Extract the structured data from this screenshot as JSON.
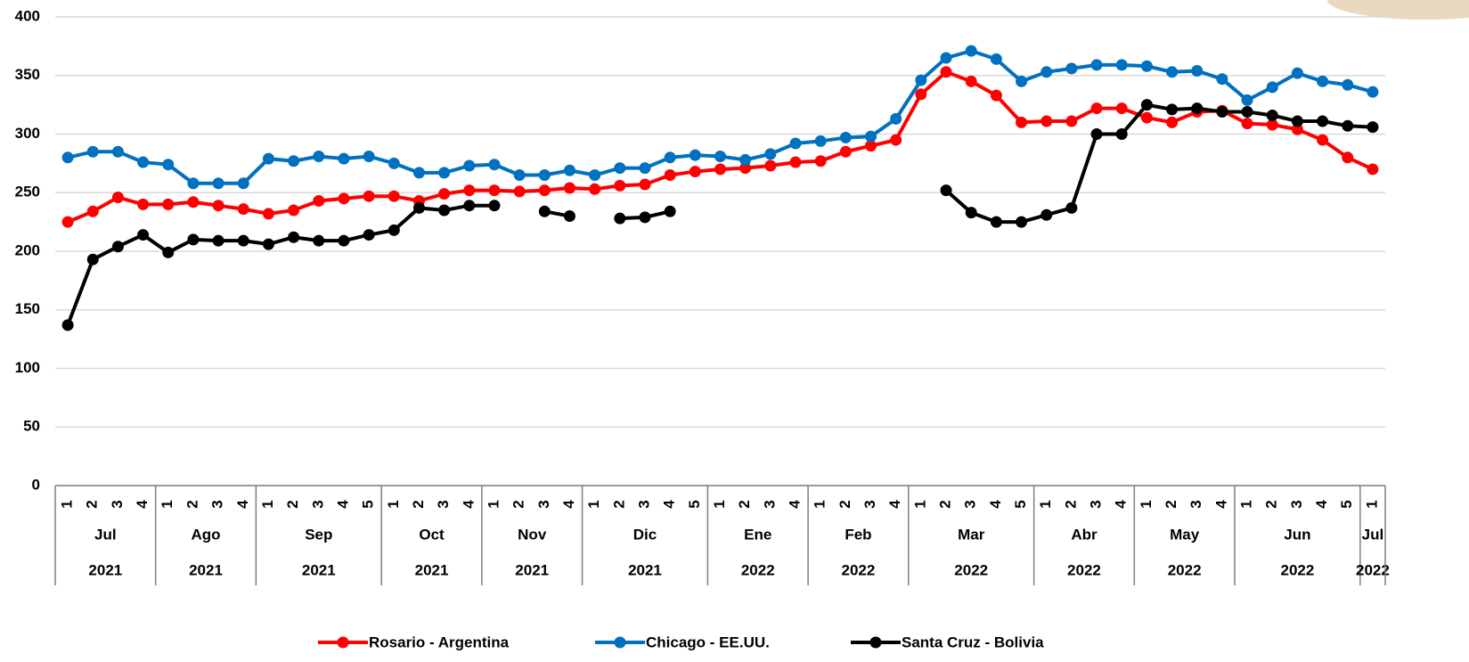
{
  "chart_data": {
    "type": "line",
    "months": [
      {
        "name": "Jul",
        "year": "2021",
        "weeks": [
          "1",
          "2",
          "3",
          "4"
        ]
      },
      {
        "name": "Ago",
        "year": "2021",
        "weeks": [
          "1",
          "2",
          "3",
          "4"
        ]
      },
      {
        "name": "Sep",
        "year": "2021",
        "weeks": [
          "1",
          "2",
          "3",
          "4",
          "5"
        ]
      },
      {
        "name": "Oct",
        "year": "2021",
        "weeks": [
          "1",
          "2",
          "3",
          "4"
        ]
      },
      {
        "name": "Nov",
        "year": "2021",
        "weeks": [
          "1",
          "2",
          "3",
          "4"
        ]
      },
      {
        "name": "Dic",
        "year": "2021",
        "weeks": [
          "1",
          "2",
          "3",
          "4",
          "5"
        ]
      },
      {
        "name": "Ene",
        "year": "2022",
        "weeks": [
          "1",
          "2",
          "3",
          "4"
        ]
      },
      {
        "name": "Feb",
        "year": "2022",
        "weeks": [
          "1",
          "2",
          "3",
          "4"
        ]
      },
      {
        "name": "Mar",
        "year": "2022",
        "weeks": [
          "1",
          "2",
          "3",
          "4",
          "5"
        ]
      },
      {
        "name": "Abr",
        "year": "2022",
        "weeks": [
          "1",
          "2",
          "3",
          "4"
        ]
      },
      {
        "name": "May",
        "year": "2022",
        "weeks": [
          "1",
          "2",
          "3",
          "4"
        ]
      },
      {
        "name": "Jun",
        "year": "2022",
        "weeks": [
          "1",
          "2",
          "3",
          "4",
          "5"
        ]
      },
      {
        "name": "Jul",
        "year": "2022",
        "weeks": [
          "1"
        ]
      }
    ],
    "series": [
      {
        "name": "Rosario - Argentina",
        "color": "#ff0000",
        "values": [
          225,
          234,
          246,
          240,
          240,
          242,
          239,
          236,
          232,
          235,
          243,
          245,
          247,
          247,
          243,
          249,
          252,
          252,
          251,
          252,
          254,
          253,
          256,
          257,
          265,
          268,
          270,
          271,
          273,
          276,
          277,
          285,
          290,
          295,
          334,
          353,
          345,
          333,
          310,
          311,
          311,
          322,
          322,
          314,
          310,
          319,
          320,
          309,
          308,
          304,
          295,
          280,
          270
        ]
      },
      {
        "name": "Chicago - EE.UU.",
        "color": "#0070c0",
        "values": [
          280,
          285,
          285,
          276,
          274,
          258,
          258,
          258,
          279,
          277,
          281,
          279,
          281,
          275,
          267,
          267,
          273,
          274,
          265,
          265,
          269,
          265,
          271,
          271,
          280,
          282,
          281,
          278,
          283,
          292,
          294,
          297,
          298,
          313,
          346,
          365,
          371,
          364,
          345,
          353,
          356,
          359,
          359,
          358,
          353,
          354,
          347,
          329,
          340,
          352,
          345,
          342,
          336
        ]
      },
      {
        "name": "Santa Cruz - Bolivia",
        "color": "#000000",
        "values": [
          137,
          193,
          204,
          214,
          199,
          210,
          209,
          209,
          206,
          212,
          209,
          209,
          214,
          218,
          237,
          235,
          239,
          239,
          null,
          234,
          230,
          null,
          228,
          229,
          234,
          null,
          null,
          null,
          null,
          null,
          null,
          null,
          null,
          null,
          null,
          252,
          233,
          225,
          225,
          231,
          237,
          300,
          300,
          325,
          321,
          322,
          319,
          319,
          316,
          311,
          311,
          307,
          306
        ]
      }
    ],
    "ylim": [
      0,
      400
    ],
    "yticks": [
      0,
      50,
      100,
      150,
      200,
      250,
      300,
      350,
      400
    ],
    "grid": true,
    "legend": "bottom"
  }
}
